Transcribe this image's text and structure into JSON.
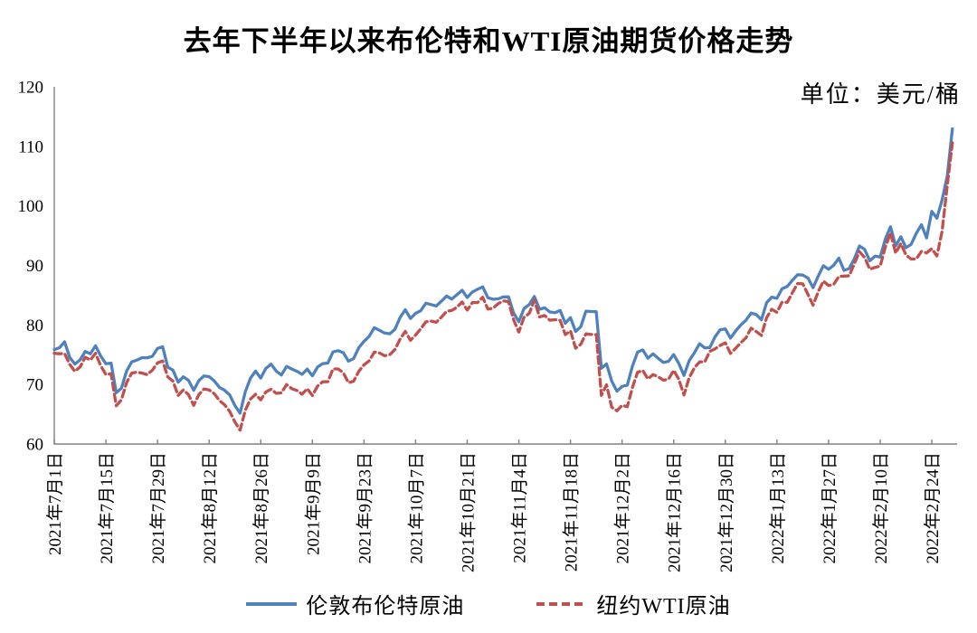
{
  "title": "去年下半年以来布伦特和WTI原油期货价格走势",
  "unit_label": "单位：美元/桶",
  "colors": {
    "brent": "#4F81BD",
    "wti": "#C0504D",
    "axis": "#808080",
    "text": "#000000"
  },
  "chart_data": {
    "type": "line",
    "title": "去年下半年以来布伦特和WTI原油期货价格走势",
    "ylabel": "美元/桶",
    "ylim": [
      60,
      120
    ],
    "y_ticks": [
      60,
      70,
      80,
      90,
      100,
      110,
      120
    ],
    "grid": false,
    "legend_position": "bottom",
    "x_tick_interval": 10,
    "x_tick_labels": [
      "2021年7月1日",
      "2021年7月15日",
      "2021年7月29日",
      "2021年8月12日",
      "2021年8月26日",
      "2021年9月9日",
      "2021年9月23日",
      "2021年10月7日",
      "2021年10月21日",
      "2021年11月4日",
      "2021年11月18日",
      "2021年12月2日",
      "2021年12月16日",
      "2021年12月30日",
      "2022年1月13日",
      "2022年1月27日",
      "2022年2月10日",
      "2022年2月24日"
    ],
    "series": [
      {
        "name": "伦敦布伦特原油",
        "color": "#4F81BD",
        "style": "solid",
        "values": [
          75.84,
          76.17,
          77.16,
          74.53,
          73.43,
          74.12,
          75.55,
          75.16,
          76.49,
          74.76,
          73.47,
          73.59,
          68.62,
          69.35,
          72.23,
          73.79,
          74.1,
          74.5,
          74.48,
          74.74,
          76.05,
          76.33,
          72.89,
          72.41,
          70.38,
          71.29,
          70.7,
          69.04,
          70.63,
          71.44,
          71.31,
          70.59,
          69.51,
          69.03,
          68.23,
          66.45,
          65.18,
          68.75,
          71.05,
          72.25,
          71.07,
          72.7,
          73.41,
          72.25,
          71.59,
          73.03,
          72.61,
          72.22,
          71.69,
          72.6,
          71.45,
          72.92,
          73.51,
          73.6,
          75.46,
          75.67,
          75.34,
          73.92,
          74.36,
          76.19,
          77.25,
          78.09,
          79.53,
          79.09,
          78.64,
          78.52,
          79.28,
          81.26,
          82.56,
          81.08,
          81.95,
          82.39,
          83.65,
          83.42,
          83.18,
          84.0,
          84.86,
          84.33,
          85.08,
          85.82,
          84.61,
          85.53,
          85.99,
          86.4,
          84.58,
          84.32,
          84.38,
          84.71,
          84.72,
          81.99,
          80.54,
          82.74,
          83.43,
          84.78,
          82.64,
          82.87,
          82.17,
          82.05,
          82.43,
          80.28,
          81.24,
          78.89,
          79.7,
          82.31,
          82.25,
          82.22,
          72.72,
          73.44,
          70.57,
          68.87,
          69.67,
          69.88,
          73.08,
          75.44,
          75.82,
          74.42,
          75.15,
          74.39,
          73.7,
          73.88,
          75.02,
          73.52,
          71.52,
          73.98,
          75.29,
          76.85,
          76.14,
          76.2,
          78.0,
          79.2,
          79.32,
          77.78,
          78.98,
          80.0,
          80.8,
          81.99,
          81.75,
          80.87,
          83.72,
          84.67,
          84.47,
          86.06,
          86.48,
          87.51,
          88.44,
          88.38,
          87.89,
          86.27,
          88.2,
          89.96,
          89.34,
          90.03,
          91.21,
          89.16,
          89.47,
          91.11,
          93.27,
          92.69,
          90.78,
          91.55,
          91.41,
          94.44,
          96.48,
          93.28,
          94.81,
          92.97,
          93.54,
          95.39,
          96.84,
          94.62,
          99.08,
          97.93,
          100.99,
          104.97,
          112.93
        ]
      },
      {
        "name": "纽约WTI原油",
        "color": "#C0504D",
        "style": "dashed",
        "values": [
          75.23,
          75.16,
          75.2,
          73.37,
          72.2,
          72.94,
          74.56,
          74.1,
          75.25,
          73.13,
          71.65,
          71.81,
          66.42,
          67.42,
          70.3,
          71.91,
          72.07,
          71.91,
          71.65,
          72.39,
          73.62,
          73.95,
          71.26,
          70.56,
          68.15,
          69.09,
          68.28,
          66.48,
          68.29,
          69.25,
          69.09,
          68.44,
          67.29,
          66.59,
          65.46,
          63.69,
          62.32,
          65.64,
          67.54,
          68.36,
          67.42,
          68.74,
          69.21,
          68.5,
          68.59,
          69.99,
          69.29,
          69.0,
          68.35,
          69.3,
          68.14,
          69.72,
          70.45,
          70.46,
          72.61,
          72.61,
          71.97,
          70.29,
          70.56,
          72.23,
          73.3,
          73.98,
          75.45,
          75.29,
          74.83,
          75.03,
          75.88,
          77.62,
          78.93,
          77.43,
          78.3,
          79.35,
          80.52,
          80.64,
          80.44,
          81.31,
          82.28,
          82.44,
          82.96,
          83.87,
          82.5,
          83.76,
          83.76,
          84.65,
          82.66,
          82.81,
          83.57,
          84.05,
          83.91,
          80.86,
          78.81,
          81.27,
          81.93,
          84.15,
          81.34,
          81.59,
          80.79,
          80.88,
          80.76,
          78.36,
          79.01,
          76.1,
          76.75,
          78.5,
          78.39,
          78.4,
          68.15,
          69.95,
          66.18,
          65.57,
          66.5,
          66.26,
          69.49,
          72.05,
          72.36,
          70.94,
          71.67,
          71.29,
          70.73,
          70.87,
          72.38,
          70.86,
          68.23,
          71.12,
          72.76,
          73.79,
          73.8,
          75.57,
          75.98,
          76.56,
          76.99,
          75.21,
          76.08,
          76.99,
          77.85,
          79.46,
          78.9,
          78.23,
          81.22,
          82.64,
          82.12,
          83.82,
          83.8,
          85.43,
          86.96,
          86.9,
          85.14,
          83.31,
          85.6,
          87.35,
          86.61,
          86.82,
          88.15,
          88.2,
          88.26,
          90.27,
          92.31,
          91.32,
          89.36,
          89.66,
          89.88,
          93.1,
          95.46,
          92.07,
          93.66,
          91.76,
          91.07,
          91.1,
          92.35,
          92.1,
          92.81,
          91.59,
          95.72,
          103.41,
          110.6
        ]
      }
    ]
  }
}
